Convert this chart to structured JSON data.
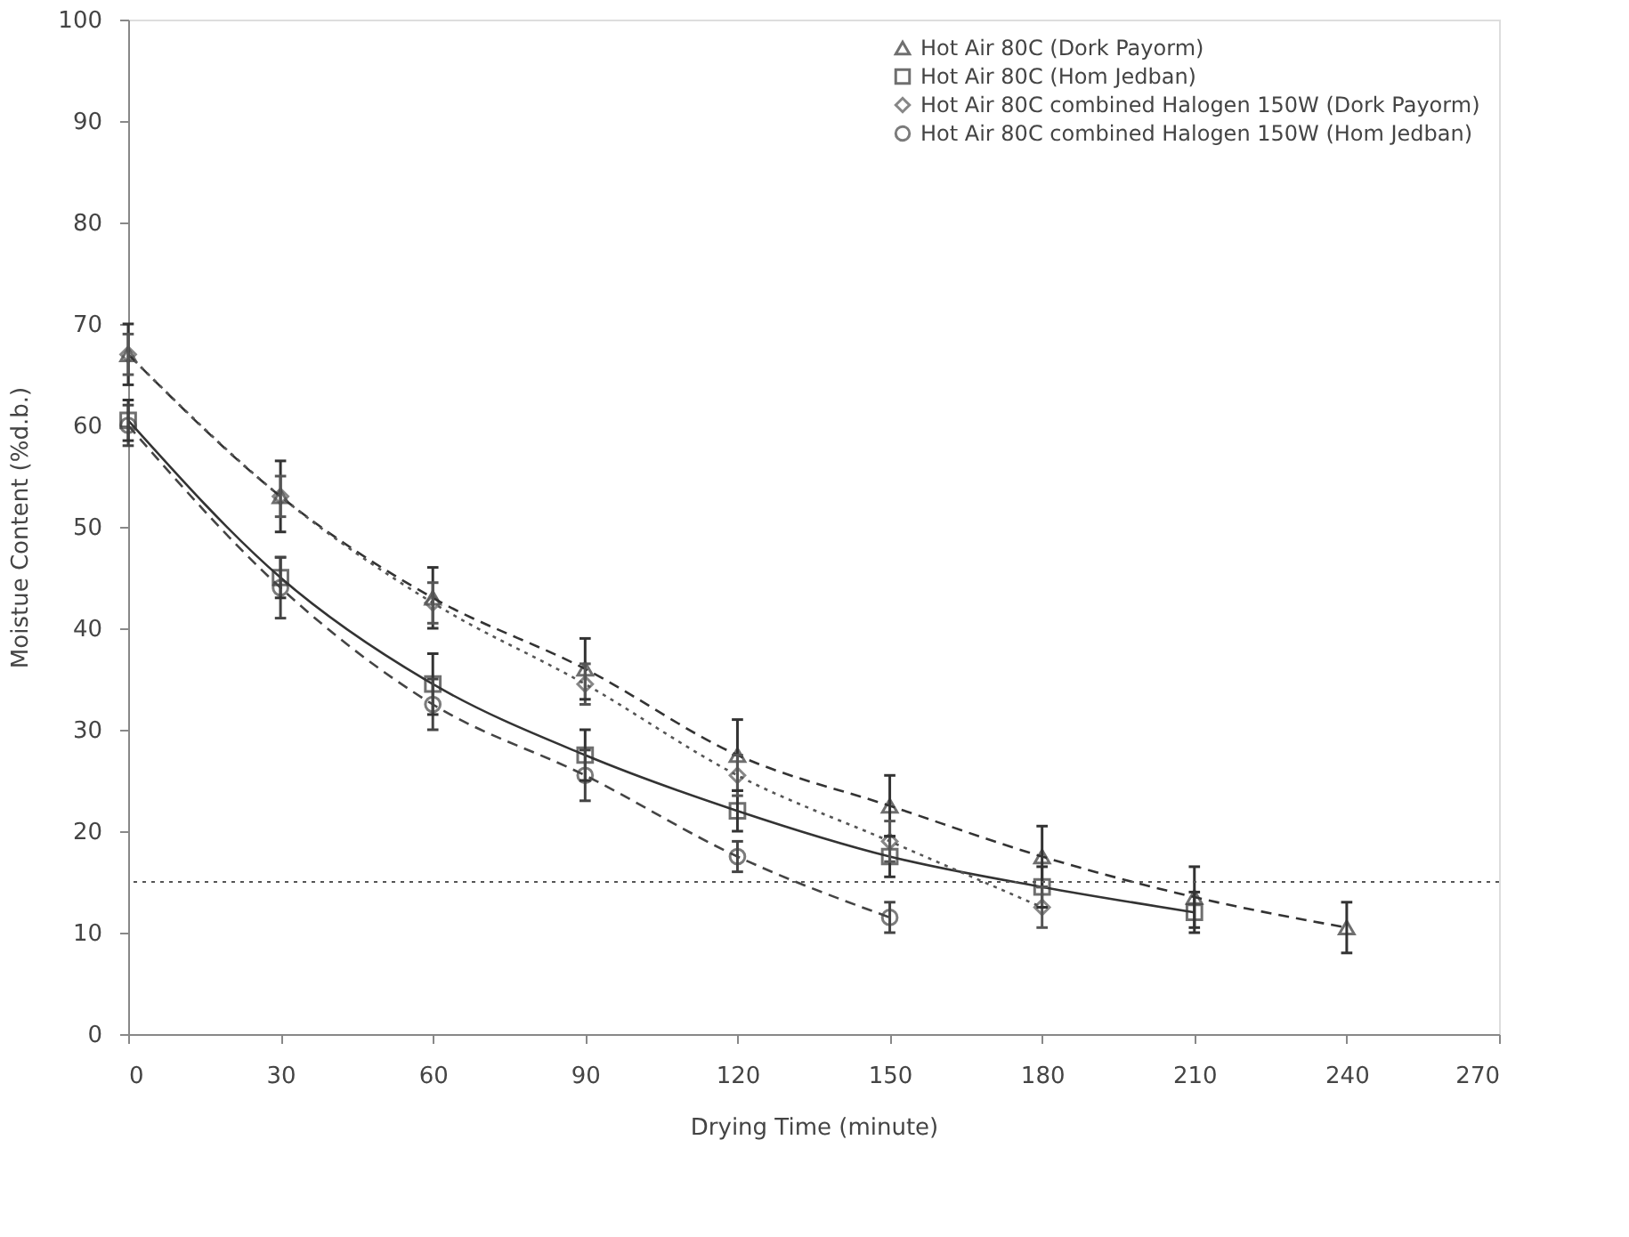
{
  "chart_data": {
    "type": "line",
    "xlabel": "Drying Time (minute)",
    "ylabel": "Moistue Content (%d.b.)",
    "xlim": [
      0,
      270
    ],
    "xticks": [
      0,
      30,
      60,
      90,
      120,
      150,
      180,
      210,
      240,
      270
    ],
    "ylim": [
      0,
      100
    ],
    "yticks": [
      0,
      10,
      20,
      30,
      40,
      50,
      60,
      70,
      80,
      90,
      100
    ],
    "grid": false,
    "legend": "top right",
    "series": [
      {
        "name": "Hot Air 80C (Dork Payorm)",
        "color": "#333333",
        "marker": "triangle",
        "line_style": "dashed",
        "x": [
          0,
          30,
          60,
          90,
          120,
          150,
          180,
          210,
          240
        ],
        "values": [
          67,
          53,
          43,
          36,
          27.5,
          22.5,
          17.5,
          13.5,
          10.5
        ],
        "errors": [
          3,
          3.5,
          3,
          3,
          3.5,
          3,
          3,
          3,
          2.5
        ]
      },
      {
        "name": "Hot Air 80C (Hom Jedban)",
        "color": "#333333",
        "marker": "square",
        "line_style": "solid",
        "x": [
          0,
          30,
          60,
          90,
          120,
          150,
          180,
          210
        ],
        "values": [
          60.5,
          45,
          34.5,
          27.5,
          22,
          17.5,
          14.5,
          12
        ],
        "errors": [
          2,
          2,
          3,
          2.5,
          2,
          2,
          2,
          2
        ]
      },
      {
        "name": "Hot Air 80C combined Halogen 150W (Dork Payorm)",
        "color": "#555555",
        "marker": "diamond",
        "line_style": "dotted",
        "x": [
          0,
          30,
          60,
          90,
          120,
          150,
          180
        ],
        "values": [
          67,
          53,
          42.5,
          34.5,
          25.5,
          19,
          12.5
        ],
        "errors": [
          2,
          2,
          2,
          2,
          2,
          2,
          2
        ]
      },
      {
        "name": "Hot Air 80C combined Halogen 150W (Hom Jedban)",
        "color": "#444444",
        "marker": "circle",
        "line_style": "dashed",
        "x": [
          0,
          30,
          60,
          90,
          120,
          150
        ],
        "values": [
          60,
          44,
          32.5,
          25.5,
          17.5,
          11.5
        ],
        "errors": [
          2,
          3,
          2.5,
          2.5,
          1.5,
          1.5
        ]
      }
    ],
    "ref_lines": [
      {
        "axis": "y",
        "value": 15,
        "label": null,
        "color": "#555555",
        "line_style": "dotted"
      }
    ]
  }
}
